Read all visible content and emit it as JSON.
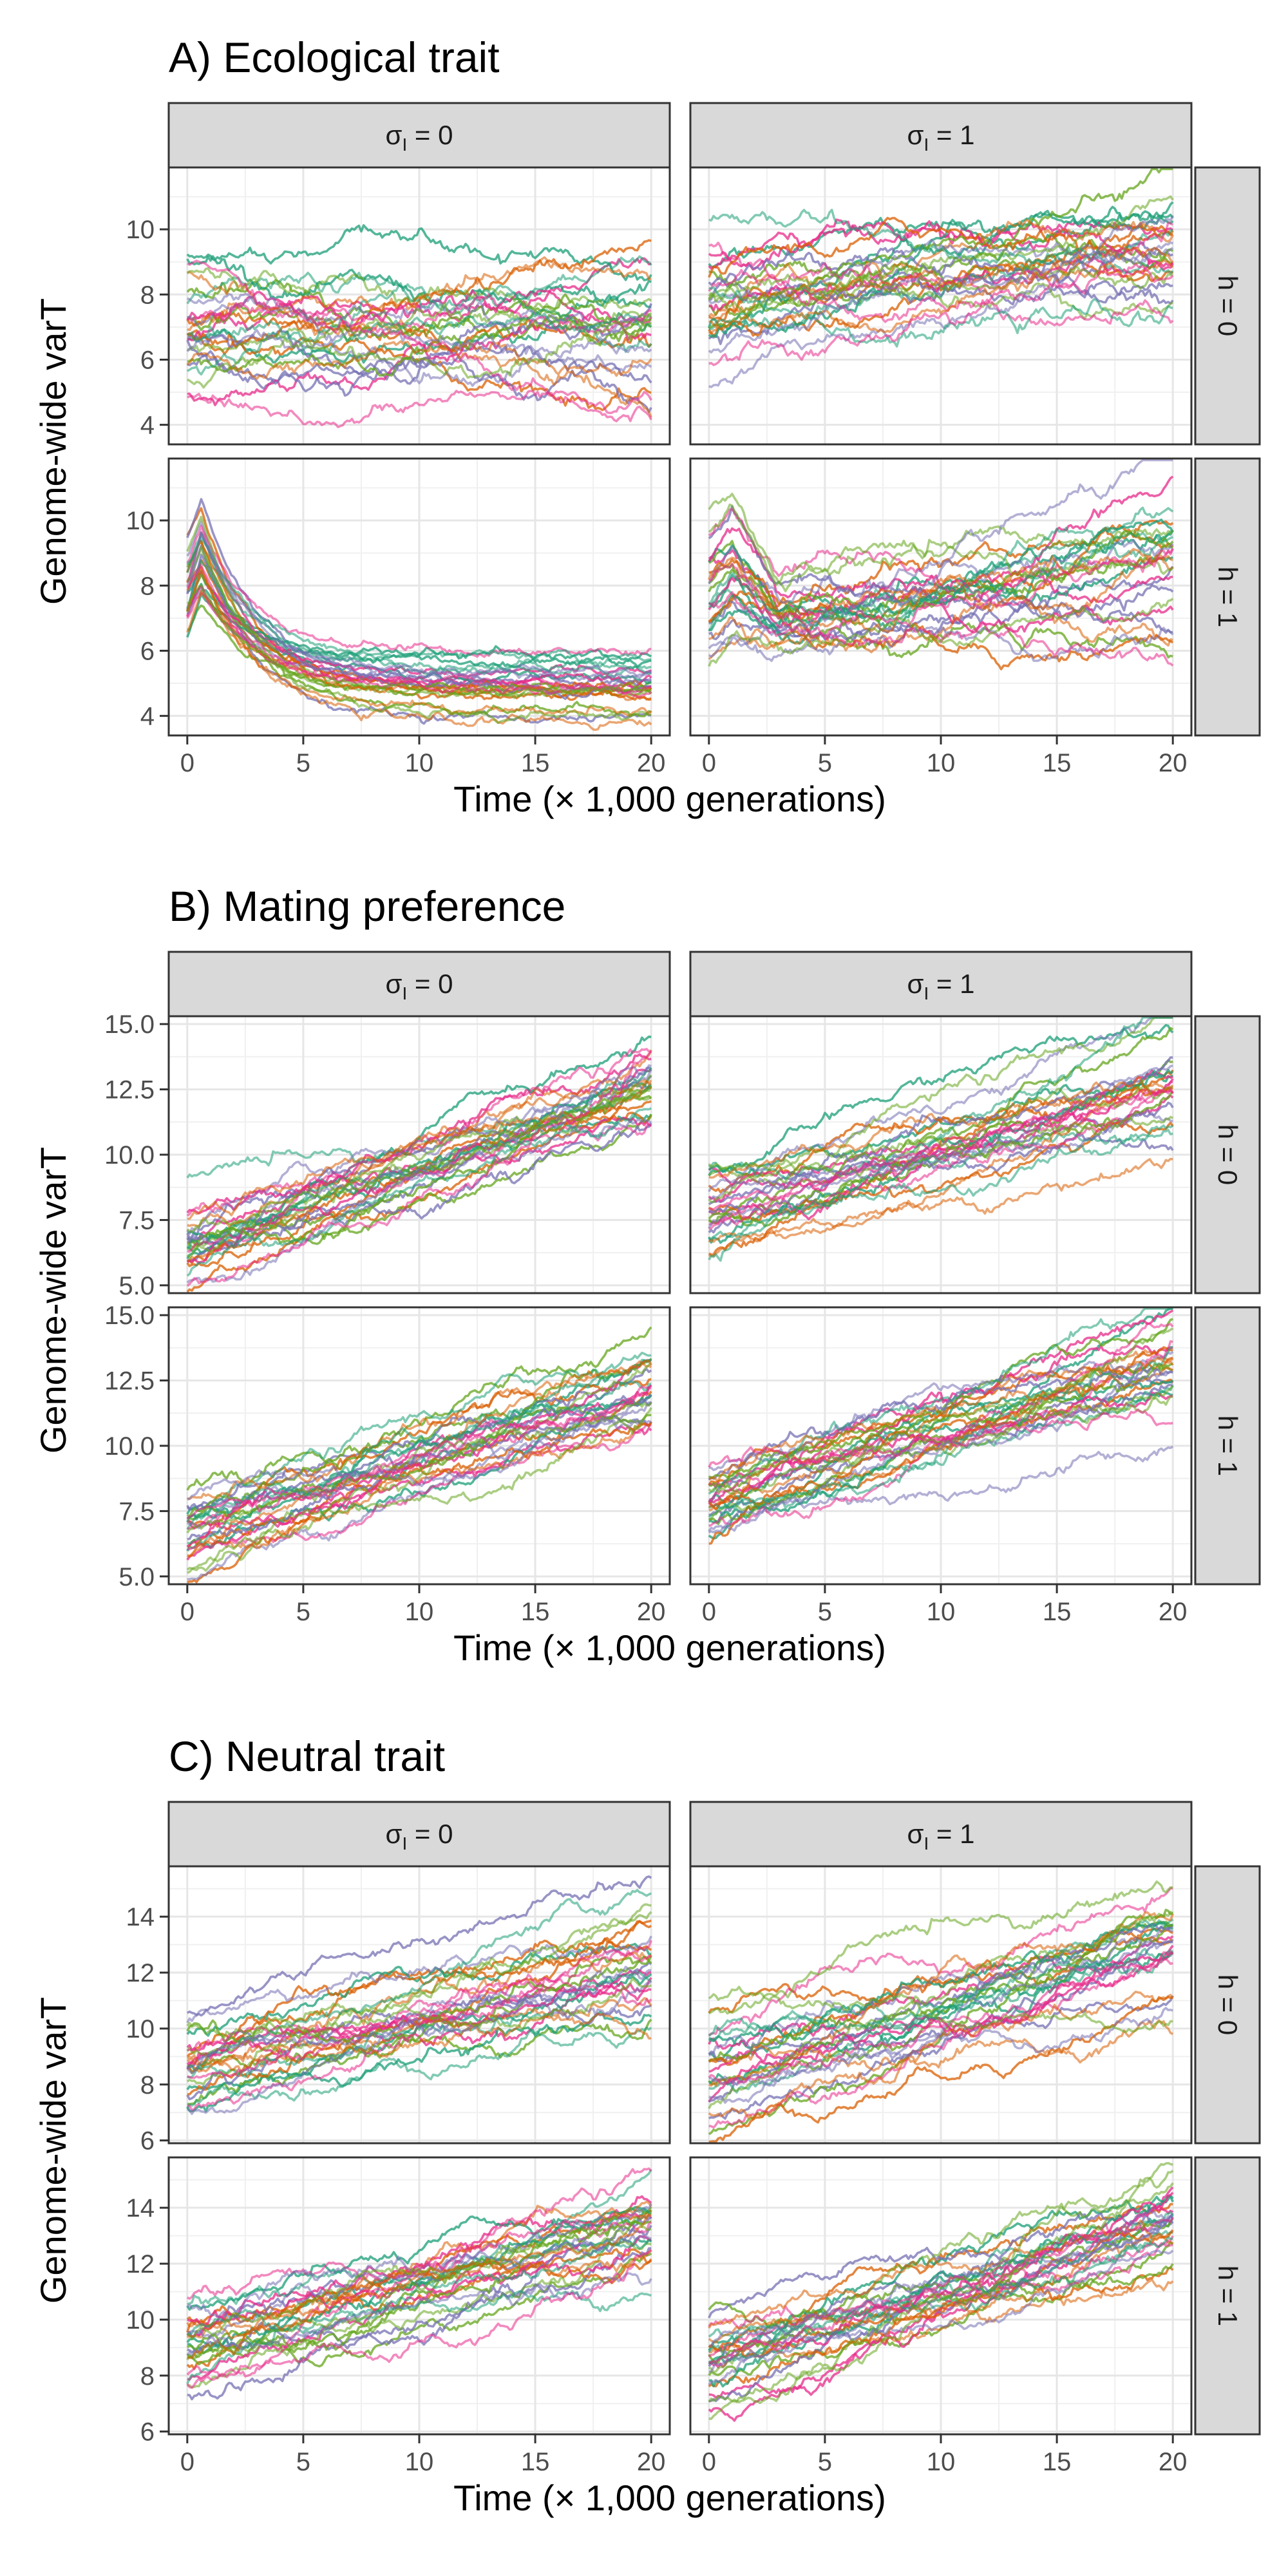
{
  "strip_top": {
    "sigma_symbol": "σ",
    "sigma_subscript": "I",
    "cols": [
      " = 0",
      " = 1"
    ]
  },
  "strip_right": [
    "h = 0",
    "h = 1"
  ],
  "y_axis_label": "Genome-wide varT",
  "x_axis_label": "Time (× 1,000 generations)",
  "x_ticks": [
    "0",
    "5",
    "10",
    "15",
    "20"
  ],
  "colors": [
    "#1b9e77",
    "#d95f02",
    "#7570b3",
    "#e7298a",
    "#66a61e"
  ],
  "chart_data": [
    {
      "type": "line",
      "title": "A) Ecological trait",
      "xlabel": "Time (× 1,000 generations)",
      "ylabel": "Genome-wide varT",
      "xlim": [
        -0.8,
        20.8
      ],
      "ylim": [
        3.4,
        11.9
      ],
      "x_ticks": [
        0,
        5,
        10,
        15,
        20
      ],
      "y_ticks": [
        4,
        6,
        8,
        10
      ],
      "y_tick_labels": [
        "4",
        "6",
        "8",
        "10"
      ],
      "grid": true,
      "replicates_per_panel": 30,
      "panels": [
        {
          "row": "h = 0",
          "col": "σI = 0",
          "summary": {
            "start_range": [
              5.2,
              9.3
            ],
            "end_range": [
              5.0,
              9.4
            ],
            "mean_start": 7.0,
            "mean_end": 7.0
          }
        },
        {
          "row": "h = 0",
          "col": "σI = 1",
          "summary": {
            "start_range": [
              6.0,
              9.3
            ],
            "end_range": [
              7.6,
              11.1
            ],
            "mean_start": 7.6,
            "mean_end": 9.0
          }
        },
        {
          "row": "h = 1",
          "col": "σI = 0",
          "summary": {
            "start_range": [
              6.0,
              9.7
            ],
            "end_range": [
              3.8,
              6.2
            ],
            "mean_start": 7.8,
            "mean_end": 4.8,
            "peak_time": 0.5,
            "peak_range": [
              7.0,
              9.6
            ],
            "plateau_time": 8
          }
        },
        {
          "row": "h = 1",
          "col": "σI = 1",
          "summary": {
            "start_range": [
              5.3,
              8.8
            ],
            "end_range": [
              6.2,
              10.1
            ],
            "mean_start": 7.6,
            "mean_end": 8.2,
            "peak_time": 1.0,
            "peak_range": [
              7.0,
              9.2
            ],
            "dip_time": 3,
            "dip_mean": 7.0
          }
        }
      ]
    },
    {
      "type": "line",
      "title": "B) Mating preference",
      "xlabel": "Time (× 1,000 generations)",
      "ylabel": "Genome-wide varT",
      "xlim": [
        -0.8,
        20.8
      ],
      "ylim": [
        4.7,
        15.3
      ],
      "x_ticks": [
        0,
        5,
        10,
        15,
        20
      ],
      "y_ticks": [
        5,
        7.5,
        10,
        12.5,
        15
      ],
      "y_tick_labels": [
        "5.0",
        "7.5",
        "10.0",
        "12.5",
        "15.0"
      ],
      "grid": true,
      "replicates_per_panel": 30,
      "panels": [
        {
          "row": "h = 0",
          "col": "σI = 0",
          "summary": {
            "start_range": [
              5.0,
              8.0
            ],
            "end_range": [
              10.8,
              13.6
            ],
            "mean_start": 6.6,
            "mean_end": 12.3
          }
        },
        {
          "row": "h = 0",
          "col": "σI = 1",
          "summary": {
            "start_range": [
              5.7,
              9.6
            ],
            "end_range": [
              10.1,
              14.8
            ],
            "mean_start": 8.0,
            "mean_end": 12.6
          }
        },
        {
          "row": "h = 1",
          "col": "σI = 0",
          "summary": {
            "start_range": [
              5.2,
              8.1
            ],
            "end_range": [
              10.8,
              13.5
            ],
            "mean_start": 6.7,
            "mean_end": 12.3
          }
        },
        {
          "row": "h = 1",
          "col": "σI = 1",
          "summary": {
            "start_range": [
              6.4,
              9.2
            ],
            "end_range": [
              11.4,
              15.0
            ],
            "mean_start": 7.7,
            "mean_end": 13.0
          }
        }
      ]
    },
    {
      "type": "line",
      "title": "C) Neutral trait",
      "xlabel": "Time (× 1,000 generations)",
      "ylabel": "Genome-wide varT",
      "xlim": [
        -0.8,
        20.8
      ],
      "ylim": [
        5.9,
        15.8
      ],
      "x_ticks": [
        0,
        5,
        10,
        15,
        20
      ],
      "y_ticks": [
        6,
        8,
        10,
        12,
        14
      ],
      "y_tick_labels": [
        "6",
        "8",
        "10",
        "12",
        "14"
      ],
      "grid": true,
      "replicates_per_panel": 30,
      "panels": [
        {
          "row": "h = 0",
          "col": "σI = 0",
          "summary": {
            "start_range": [
              6.7,
              10.0
            ],
            "end_range": [
              10.3,
              13.9
            ],
            "mean_start": 8.6,
            "mean_end": 12.4
          }
        },
        {
          "row": "h = 0",
          "col": "σI = 1",
          "summary": {
            "start_range": [
              6.4,
              11.2
            ],
            "end_range": [
              11.3,
              15.2
            ],
            "mean_start": 8.3,
            "mean_end": 12.8
          }
        },
        {
          "row": "h = 1",
          "col": "σI = 0",
          "summary": {
            "start_range": [
              7.4,
              10.3
            ],
            "end_range": [
              11.4,
              15.0
            ],
            "mean_start": 8.8,
            "mean_end": 13.2
          }
        },
        {
          "row": "h = 1",
          "col": "σI = 1",
          "summary": {
            "start_range": [
              7.6,
              10.6
            ],
            "end_range": [
              11.5,
              14.6
            ],
            "mean_start": 8.7,
            "mean_end": 13.3
          }
        }
      ]
    }
  ]
}
